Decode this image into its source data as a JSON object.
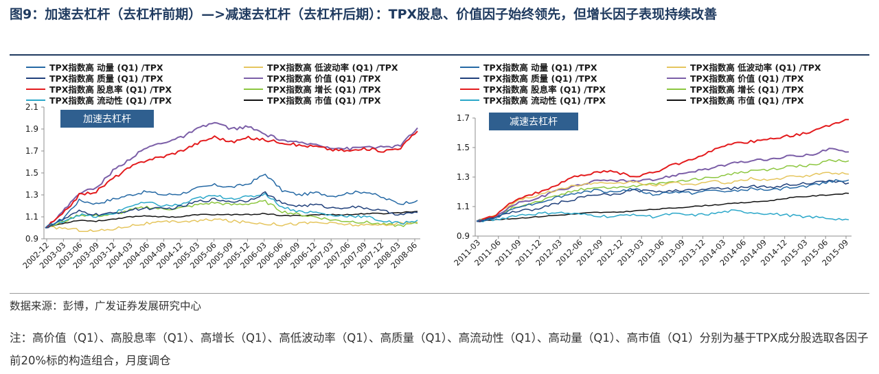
{
  "figure": {
    "title": "图9：加速去杠杆（去杠杆前期）—>减速去杠杆（去杠杆后期）：TPX股息、价值因子始终领先，但增长因子表现持续改善",
    "source": "数据来源：彭博，广发证券发展研究中心",
    "note": "注：高价值（Q1）、高股息率（Q1）、高增长（Q1）、高低波动率（Q1）、高质量（Q1）、高流动性（Q1）、高动量（Q1）、高市值（Q1）分别为基于TPX成分股选取各因子前20%标的构造组合，月度调仓"
  },
  "colors": {
    "title": "#1f3a5f",
    "phase_box": "#2f5f8f",
    "axis": "#8c8c8c"
  },
  "chart_data": [
    {
      "type": "line",
      "phase_label": "加速去杠杆",
      "ylim": [
        0.9,
        2.1
      ],
      "yticks": [
        "2.1",
        "1.9",
        "1.7",
        "1.5",
        "1.3",
        "1.1",
        "0.9"
      ],
      "xticks": [
        "2002-12",
        "2003-03",
        "2003-06",
        "2003-09",
        "2003-12",
        "2004-03",
        "2004-06",
        "2004-09",
        "2004-12",
        "2005-03",
        "2005-06",
        "2005-09",
        "2005-12",
        "2006-03",
        "2006-06",
        "2006-09",
        "2006-12",
        "2007-03",
        "2007-06",
        "2007-09",
        "2007-12",
        "2008-03",
        "2008-06"
      ],
      "series": [
        {
          "name": "TPX指数高 动量 (Q1) /TPX",
          "color": "#2468a4",
          "values": [
            1.0,
            1.08,
            1.25,
            1.22,
            1.26,
            1.3,
            1.33,
            1.3,
            1.31,
            1.36,
            1.39,
            1.37,
            1.4,
            1.49,
            1.34,
            1.3,
            1.32,
            1.29,
            1.32,
            1.33,
            1.27,
            1.22,
            1.25
          ]
        },
        {
          "name": "TPX指数高 质量 (Q1) /TPX",
          "color": "#1f3f7a",
          "values": [
            1.0,
            1.07,
            1.15,
            1.12,
            1.13,
            1.16,
            1.18,
            1.17,
            1.19,
            1.24,
            1.26,
            1.24,
            1.25,
            1.32,
            1.22,
            1.2,
            1.21,
            1.18,
            1.19,
            1.18,
            1.15,
            1.12,
            1.14
          ]
        },
        {
          "name": "TPX指数高 股息率 (Q1) /TPX",
          "color": "#e31a1c",
          "values": [
            1.0,
            1.12,
            1.3,
            1.33,
            1.45,
            1.55,
            1.62,
            1.65,
            1.7,
            1.77,
            1.83,
            1.78,
            1.82,
            1.8,
            1.78,
            1.75,
            1.74,
            1.71,
            1.7,
            1.72,
            1.7,
            1.73,
            1.88
          ]
        },
        {
          "name": "TPX指数高 流动性 (Q1) /TPX",
          "color": "#2aa7c9",
          "values": [
            1.0,
            1.06,
            1.12,
            1.1,
            1.13,
            1.2,
            1.23,
            1.2,
            1.21,
            1.27,
            1.29,
            1.27,
            1.28,
            1.31,
            1.19,
            1.15,
            1.14,
            1.11,
            1.11,
            1.1,
            1.06,
            1.04,
            1.07
          ]
        },
        {
          "name": "TPX指数高 低波动率 (Q1) /TPX",
          "color": "#e5c55d",
          "values": [
            1.0,
            1.0,
            0.98,
            0.97,
            0.99,
            1.02,
            1.04,
            1.05,
            1.06,
            1.06,
            1.08,
            1.06,
            1.05,
            1.04,
            1.03,
            1.04,
            1.05,
            1.04,
            1.03,
            1.02,
            1.03,
            1.04,
            1.05
          ]
        },
        {
          "name": "TPX指数高 价值 (Q1) /TPX",
          "color": "#7b5ea7",
          "values": [
            1.0,
            1.14,
            1.32,
            1.36,
            1.52,
            1.63,
            1.73,
            1.78,
            1.82,
            1.9,
            1.96,
            1.9,
            1.92,
            1.85,
            1.8,
            1.77,
            1.76,
            1.73,
            1.72,
            1.74,
            1.73,
            1.75,
            1.91
          ]
        },
        {
          "name": "TPX指数高 增长 (Q1) /TPX",
          "color": "#8cc63f",
          "values": [
            1.0,
            1.05,
            1.12,
            1.11,
            1.12,
            1.16,
            1.19,
            1.17,
            1.18,
            1.21,
            1.23,
            1.21,
            1.22,
            1.24,
            1.15,
            1.12,
            1.1,
            1.07,
            1.06,
            1.05,
            1.03,
            1.02,
            1.04
          ]
        },
        {
          "name": "TPX指数高 市值 (Q1) /TPX",
          "color": "#111111",
          "values": [
            1.0,
            1.04,
            1.07,
            1.06,
            1.08,
            1.1,
            1.11,
            1.1,
            1.1,
            1.12,
            1.12,
            1.12,
            1.12,
            1.13,
            1.11,
            1.11,
            1.12,
            1.12,
            1.12,
            1.13,
            1.13,
            1.14,
            1.15
          ]
        }
      ]
    },
    {
      "type": "line",
      "phase_label": "减速去杠杆",
      "ylim": [
        0.9,
        1.7
      ],
      "yticks": [
        "1.7",
        "1.5",
        "1.3",
        "1.1",
        "0.9"
      ],
      "xticks": [
        "2011-03",
        "2011-06",
        "2011-09",
        "2011-12",
        "2012-03",
        "2012-06",
        "2012-09",
        "2012-12",
        "2013-03",
        "2013-06",
        "2013-09",
        "2013-12",
        "2014-03",
        "2014-06",
        "2014-09",
        "2014-12",
        "2015-03",
        "2015-06",
        "2015-09"
      ],
      "series": [
        {
          "name": "TPX指数高 动量 (Q1) /TPX",
          "color": "#2468a4",
          "values": [
            1.0,
            1.02,
            1.1,
            1.12,
            1.16,
            1.19,
            1.21,
            1.2,
            1.22,
            1.18,
            1.2,
            1.19,
            1.21,
            1.2,
            1.22,
            1.21,
            1.23,
            1.24,
            1.27,
            1.28
          ]
        },
        {
          "name": "TPX指数高 质量 (Q1) /TPX",
          "color": "#1f3f7a",
          "values": [
            1.0,
            1.03,
            1.07,
            1.08,
            1.12,
            1.15,
            1.18,
            1.18,
            1.21,
            1.2,
            1.21,
            1.21,
            1.23,
            1.22,
            1.24,
            1.23,
            1.25,
            1.26,
            1.27,
            1.26
          ]
        },
        {
          "name": "TPX指数高 股息率 (Q1) /TPX",
          "color": "#e31a1c",
          "values": [
            1.0,
            1.04,
            1.15,
            1.19,
            1.24,
            1.3,
            1.33,
            1.34,
            1.3,
            1.33,
            1.38,
            1.42,
            1.48,
            1.52,
            1.54,
            1.56,
            1.58,
            1.6,
            1.65,
            1.69
          ]
        },
        {
          "name": "TPX指数高 流动性 (Q1) /TPX",
          "color": "#2aa7c9",
          "values": [
            1.0,
            1.01,
            1.04,
            1.05,
            1.06,
            1.05,
            1.04,
            1.03,
            1.05,
            1.03,
            1.05,
            1.04,
            1.05,
            1.07,
            1.06,
            1.05,
            1.04,
            1.03,
            1.02,
            1.01
          ]
        },
        {
          "name": "TPX指数高 低波动率 (Q1) /TPX",
          "color": "#e5c55d",
          "values": [
            1.0,
            1.05,
            1.14,
            1.17,
            1.21,
            1.24,
            1.26,
            1.25,
            1.27,
            1.24,
            1.26,
            1.25,
            1.27,
            1.26,
            1.29,
            1.28,
            1.3,
            1.31,
            1.33,
            1.32
          ]
        },
        {
          "name": "TPX指数高 价值 (Q1) /TPX",
          "color": "#7b5ea7",
          "values": [
            1.0,
            1.03,
            1.12,
            1.15,
            1.2,
            1.24,
            1.27,
            1.28,
            1.27,
            1.28,
            1.31,
            1.34,
            1.36,
            1.39,
            1.41,
            1.42,
            1.44,
            1.45,
            1.49,
            1.47
          ]
        },
        {
          "name": "TPX指数高 增长 (Q1) /TPX",
          "color": "#8cc63f",
          "values": [
            1.0,
            1.03,
            1.1,
            1.13,
            1.17,
            1.21,
            1.23,
            1.23,
            1.24,
            1.25,
            1.27,
            1.28,
            1.3,
            1.32,
            1.34,
            1.35,
            1.37,
            1.38,
            1.41,
            1.41
          ]
        },
        {
          "name": "TPX指数高 市值 (Q1) /TPX",
          "color": "#111111",
          "values": [
            1.0,
            1.01,
            1.02,
            1.03,
            1.04,
            1.05,
            1.06,
            1.06,
            1.07,
            1.08,
            1.09,
            1.1,
            1.11,
            1.12,
            1.13,
            1.14,
            1.16,
            1.17,
            1.18,
            1.19
          ]
        }
      ]
    }
  ]
}
